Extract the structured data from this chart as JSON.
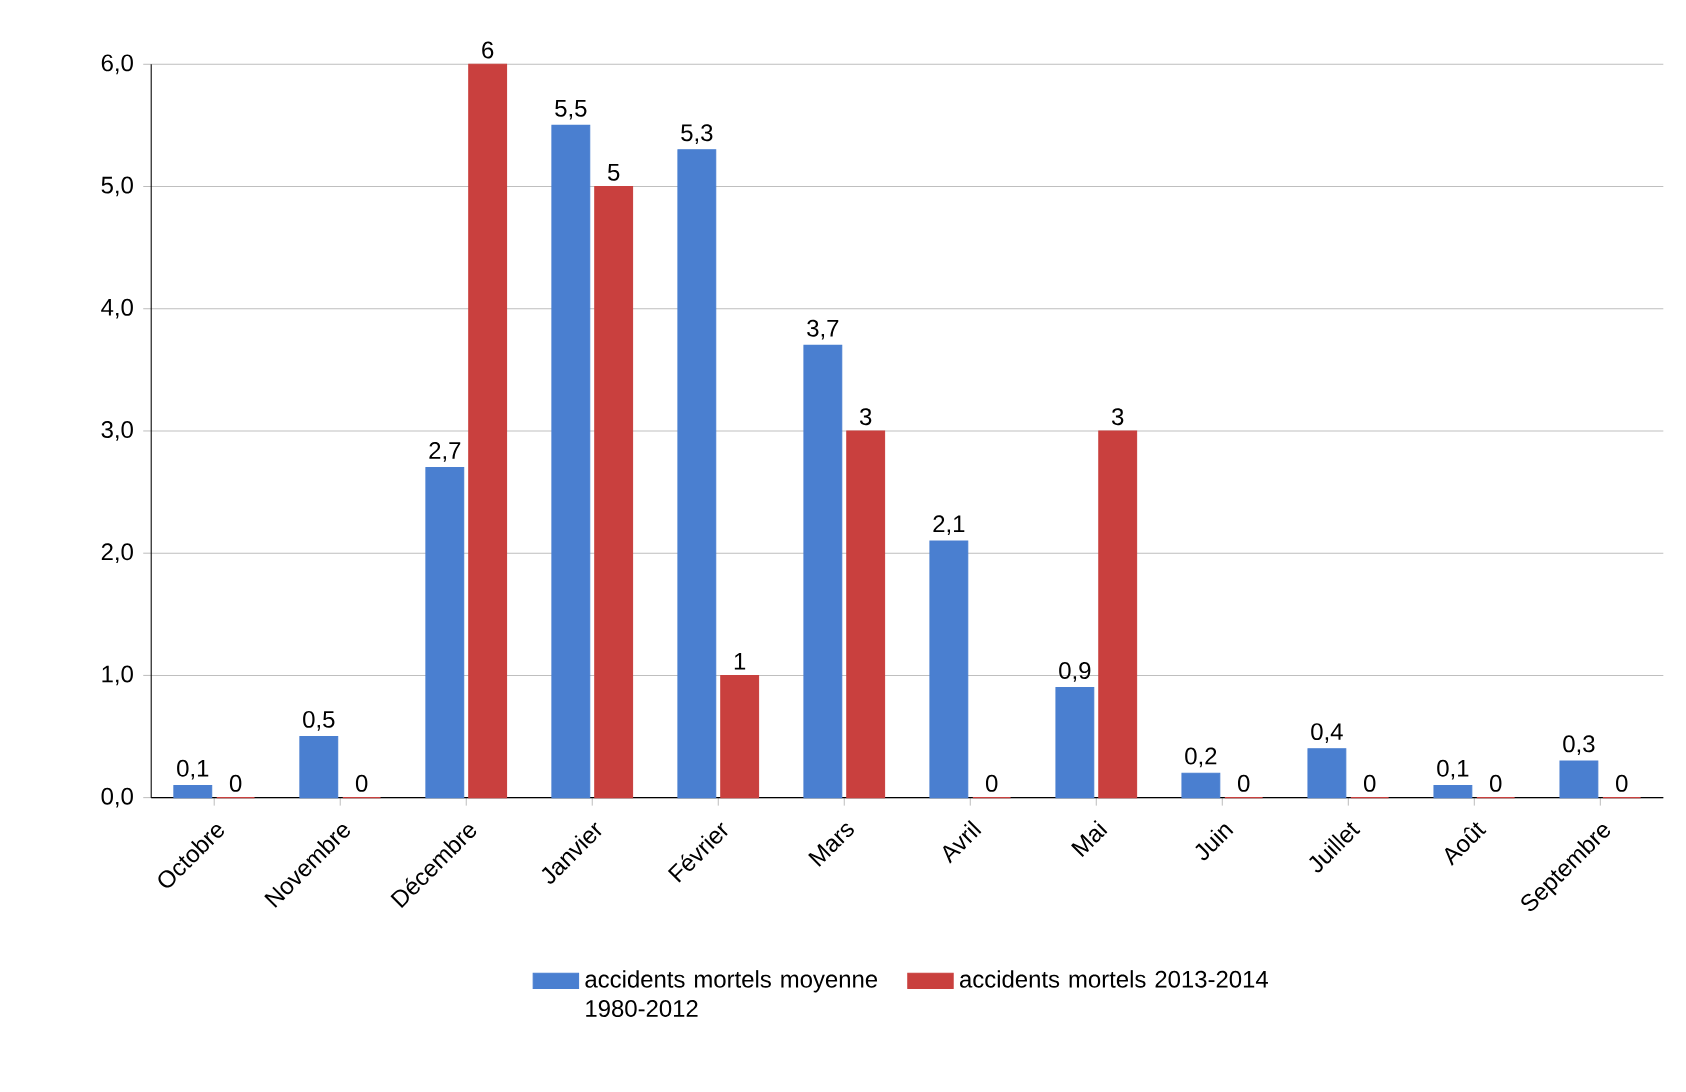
{
  "chart_data": {
    "type": "bar",
    "categories": [
      "Octobre",
      "Novembre",
      "Décembre",
      "Janvier",
      "Février",
      "Mars",
      "Avril",
      "Mai",
      "Juin",
      "Juillet",
      "Août",
      "Septembre"
    ],
    "series": [
      {
        "name": "accidents mortels moyenne 1980-2012",
        "color": "#4a7fd0",
        "values": [
          0.1,
          0.5,
          2.7,
          5.5,
          5.3,
          3.7,
          2.1,
          0.9,
          0.2,
          0.4,
          0.1,
          0.3
        ],
        "value_labels": [
          "0,1",
          "0,5",
          "2,7",
          "5,5",
          "5,3",
          "3,7",
          "2,1",
          "0,9",
          "0,2",
          "0,4",
          "0,1",
          "0,3"
        ]
      },
      {
        "name": "accidents mortels 2013-2014",
        "color": "#c9403e",
        "values": [
          0,
          0,
          6,
          5,
          1,
          3,
          0,
          3,
          0,
          0,
          0,
          0
        ],
        "value_labels": [
          "0",
          "0",
          "6",
          "5",
          "1",
          "3",
          "0",
          "3",
          "0",
          "0",
          "0",
          "0"
        ]
      }
    ],
    "ylim": [
      0,
      6
    ],
    "yticks": [
      {
        "value": 0,
        "label": "0,0"
      },
      {
        "value": 1,
        "label": "1,0"
      },
      {
        "value": 2,
        "label": "2,0"
      },
      {
        "value": 3,
        "label": "3,0"
      },
      {
        "value": 4,
        "label": "4,0"
      },
      {
        "value": 5,
        "label": "5,0"
      },
      {
        "value": 6,
        "label": "6,0"
      }
    ],
    "grid": "y",
    "legend": "bottom"
  }
}
